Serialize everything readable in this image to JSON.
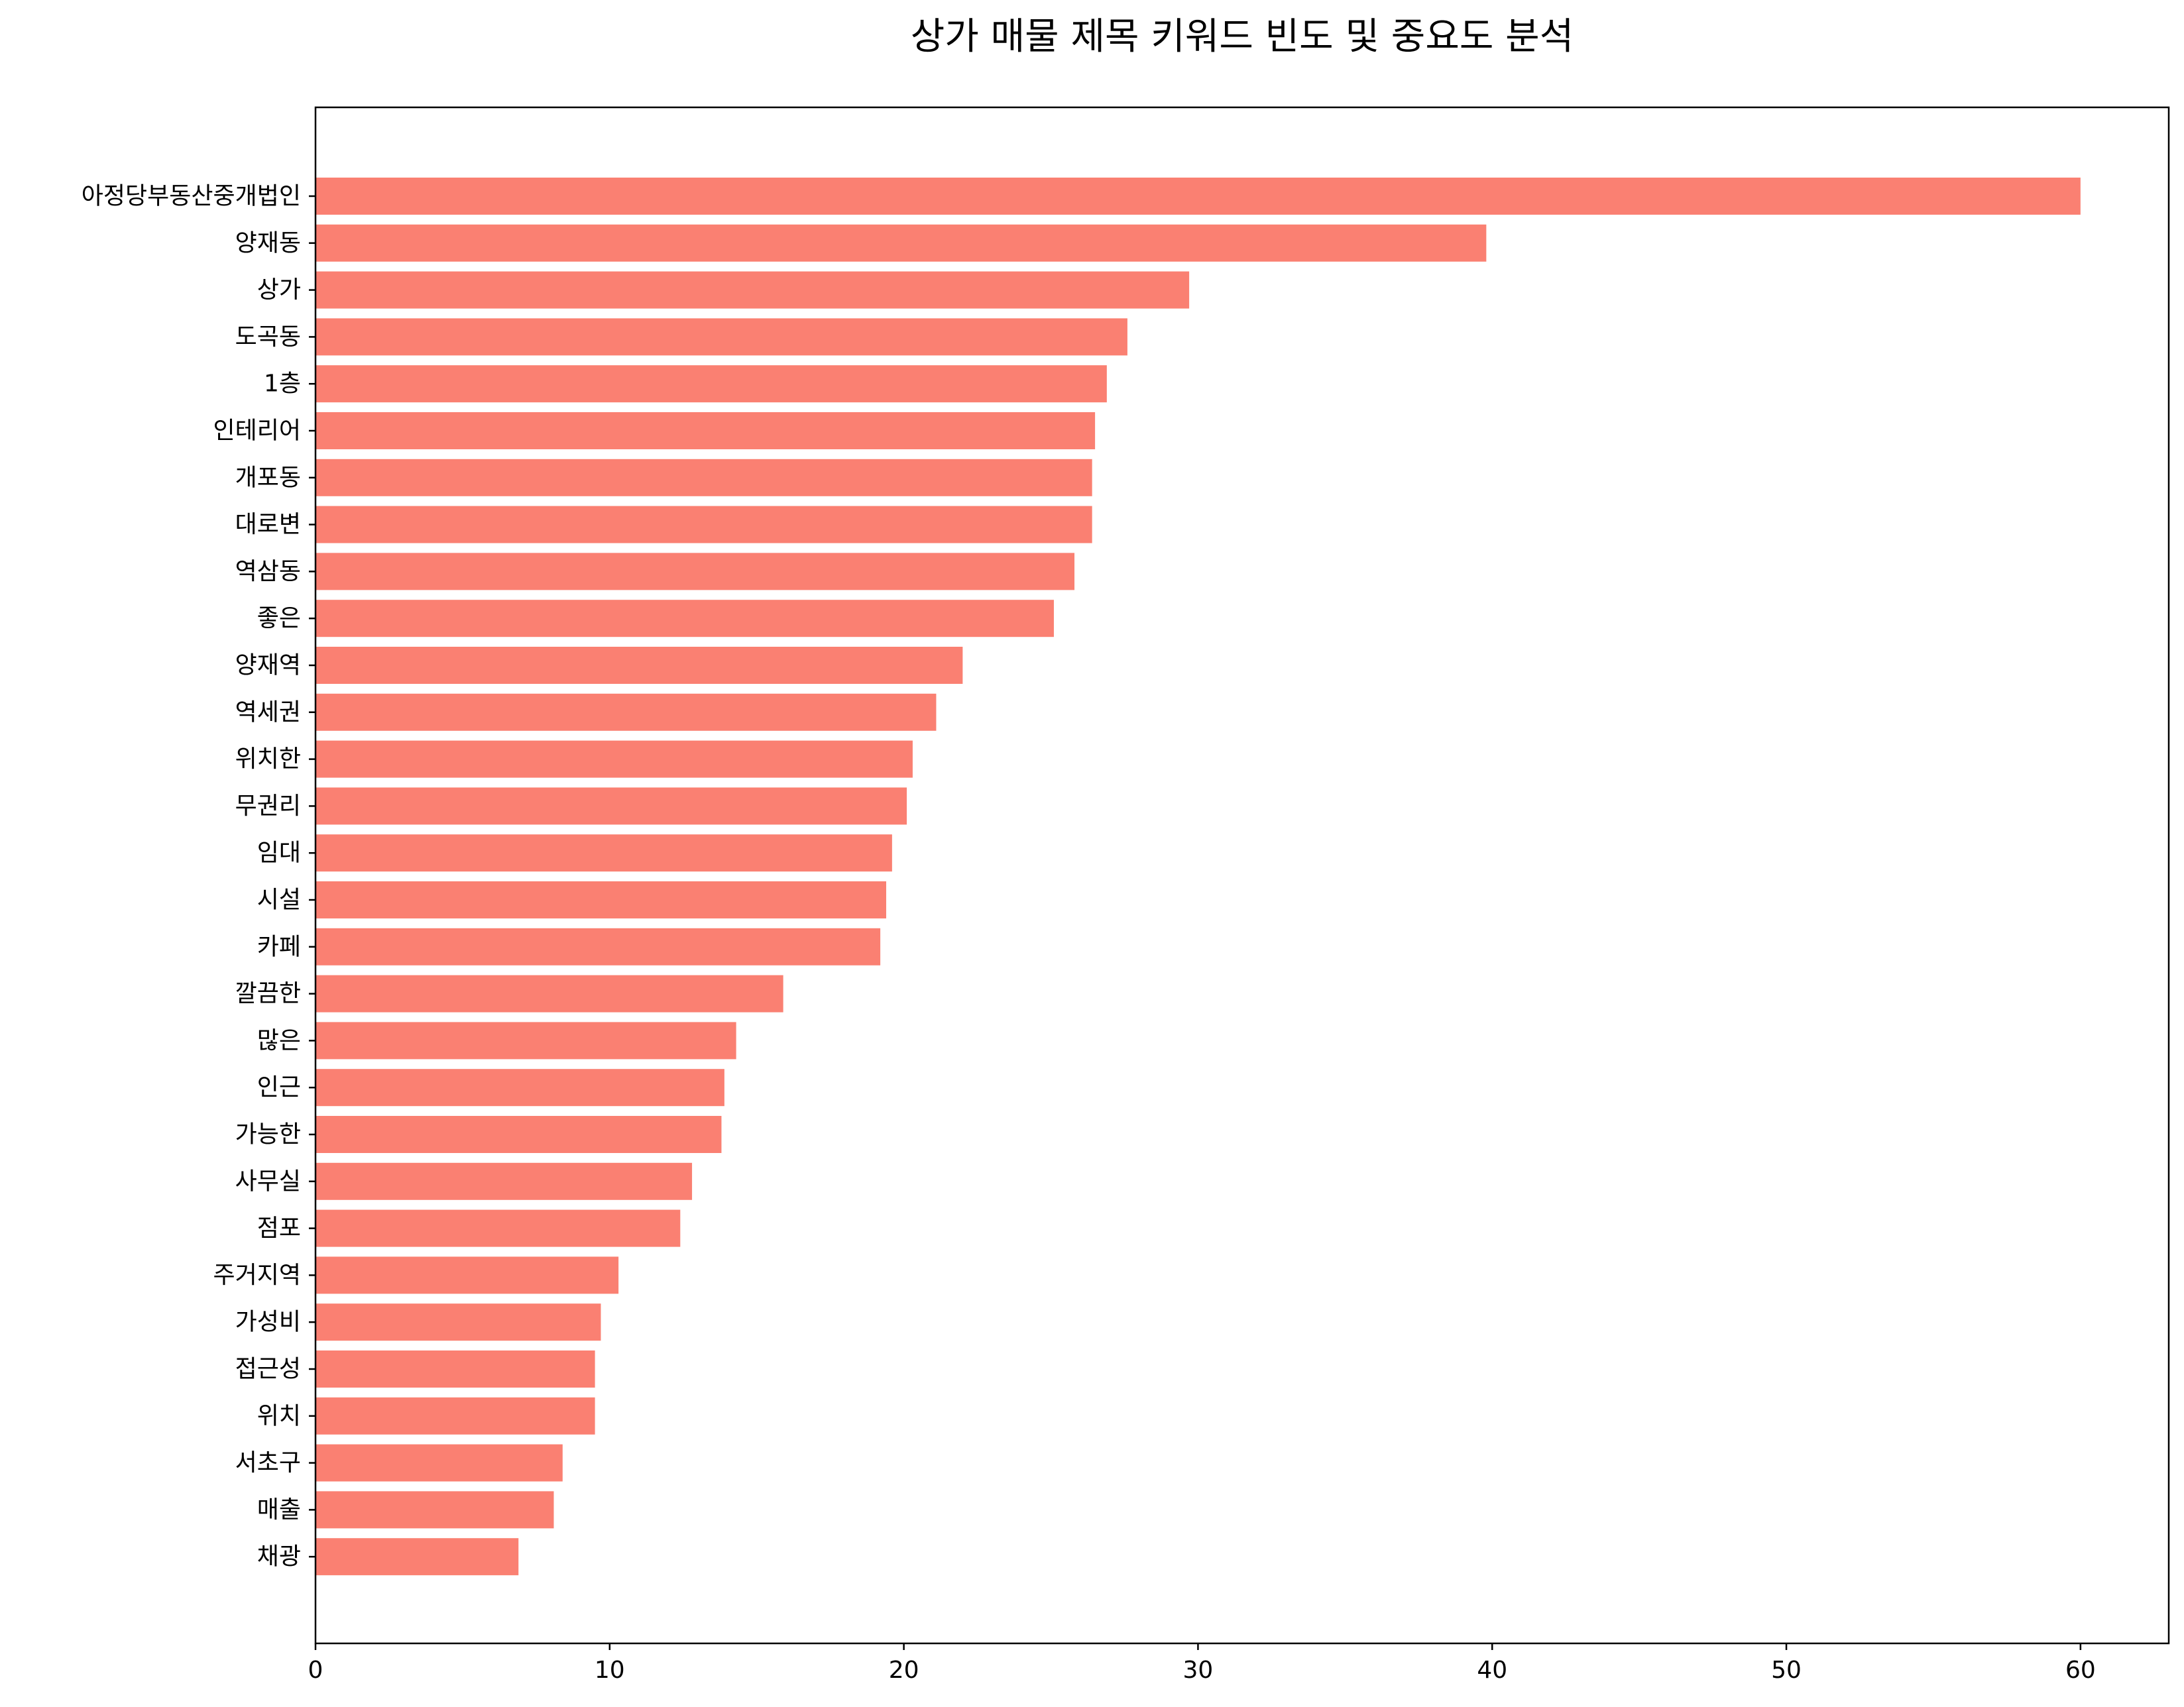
{
  "chart_data": {
    "type": "bar",
    "orientation": "horizontal",
    "title": "상가 매물 제목 키워드 빈도 및 중요도 분석",
    "xlabel": "",
    "ylabel": "",
    "xlim": [
      0,
      63
    ],
    "xticks": [
      0,
      10,
      20,
      30,
      40,
      50,
      60
    ],
    "grid": false,
    "bar_color": "#FA8072",
    "categories": [
      "아정당부동산중개법인",
      "양재동",
      "상가",
      "도곡동",
      "1층",
      "인테리어",
      "개포동",
      "대로변",
      "역삼동",
      "좋은",
      "양재역",
      "역세권",
      "위치한",
      "무권리",
      "임대",
      "시설",
      "카페",
      "깔끔한",
      "많은",
      "인근",
      "가능한",
      "사무실",
      "점포",
      "주거지역",
      "가성비",
      "접근성",
      "위치",
      "서초구",
      "매출",
      "채광"
    ],
    "values": [
      60.0,
      39.8,
      29.7,
      27.6,
      26.9,
      26.5,
      26.4,
      26.4,
      25.8,
      25.1,
      22.0,
      21.1,
      20.3,
      20.1,
      19.6,
      19.4,
      19.2,
      15.9,
      14.3,
      13.9,
      13.8,
      12.8,
      12.4,
      10.3,
      9.7,
      9.5,
      9.5,
      8.4,
      8.1,
      6.9
    ]
  }
}
